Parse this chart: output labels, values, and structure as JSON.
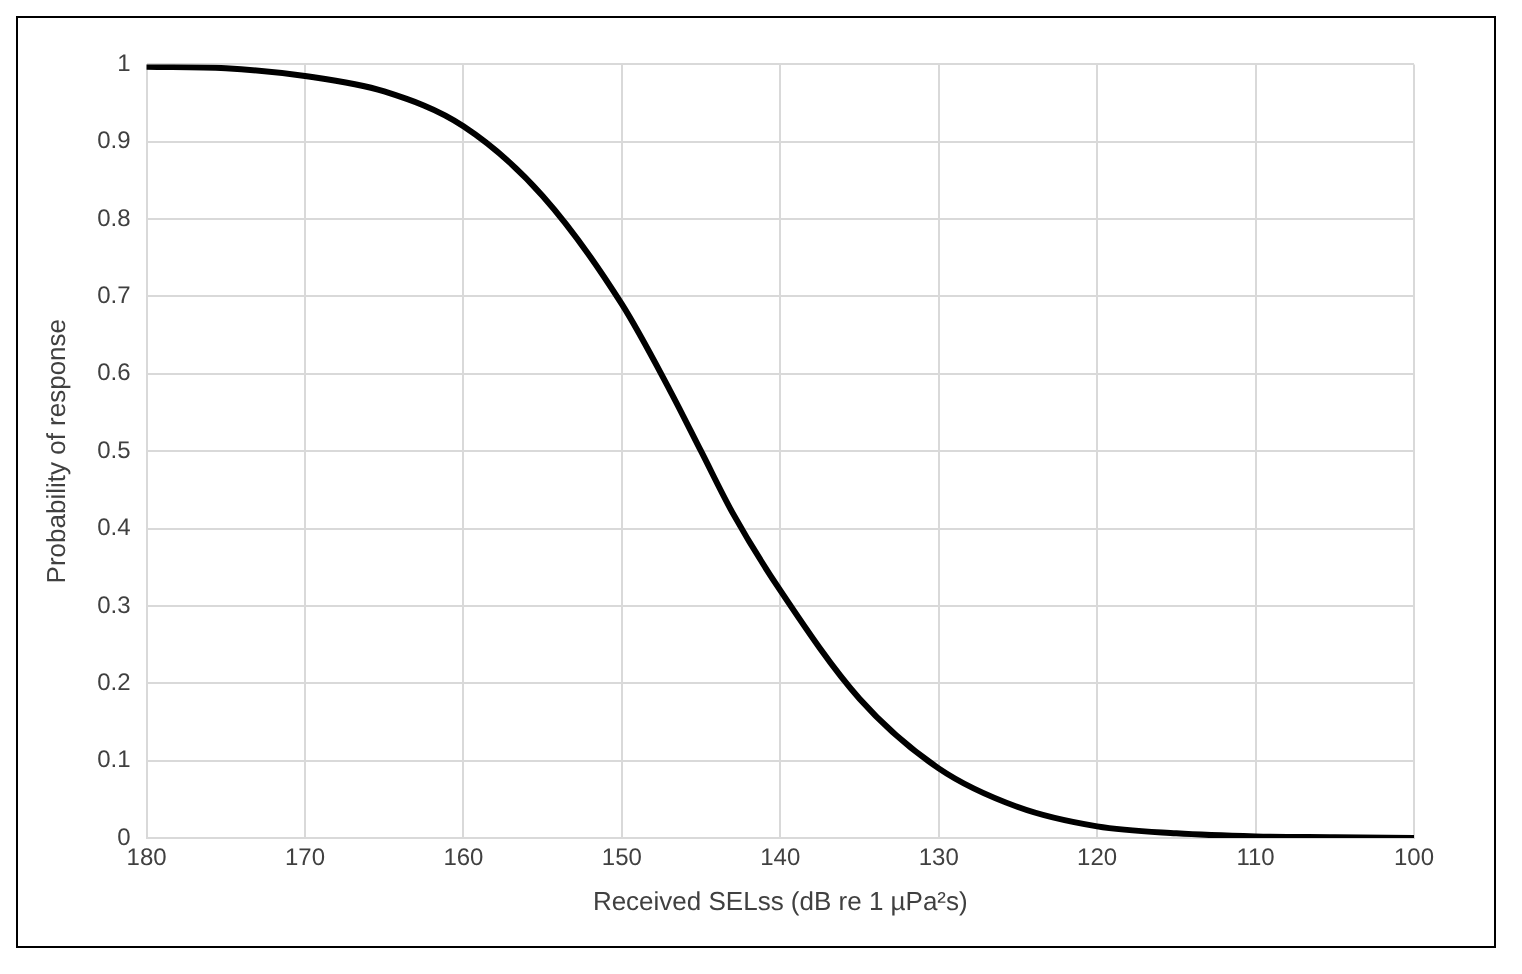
{
  "chart_data": {
    "type": "line",
    "xlabel": "Received SELss (dB re 1 µPa²s)",
    "ylabel": "Probability of response",
    "x": [
      180,
      175,
      170,
      165,
      160,
      155,
      150,
      147,
      145,
      143,
      140,
      135,
      130,
      125,
      120,
      115,
      110,
      105,
      100
    ],
    "series": [
      {
        "color": "#000000",
        "values": [
          0.997,
          0.995,
          0.985,
          0.965,
          0.92,
          0.83,
          0.69,
          0.58,
          0.5,
          0.42,
          0.32,
          0.18,
          0.09,
          0.04,
          0.015,
          0.006,
          0.002,
          0.001,
          0
        ]
      }
    ],
    "xlim": [
      180,
      100
    ],
    "ylim": [
      0,
      1
    ],
    "xticks": [
      180,
      170,
      160,
      150,
      140,
      130,
      120,
      110,
      100
    ],
    "yticks": [
      0,
      0.1,
      0.2,
      0.3,
      0.4,
      0.5,
      0.6,
      0.7,
      0.8,
      0.9,
      1
    ],
    "grid": true,
    "legend": false,
    "marker": "none",
    "line_style": "solid"
  }
}
